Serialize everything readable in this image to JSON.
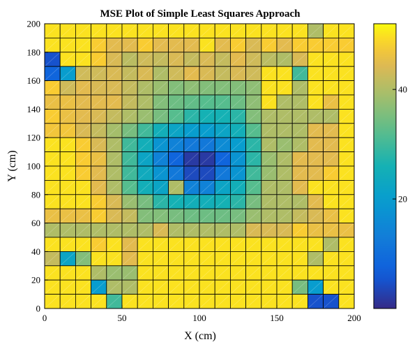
{
  "chart_data": {
    "type": "heatmap",
    "title": "MSE Plot of Simple Least Squares Approach",
    "xlabel": "X (cm)",
    "ylabel": "Y (cm)",
    "xlim": [
      0,
      200
    ],
    "ylim": [
      0,
      200
    ],
    "xticks": [
      "0",
      "50",
      "100",
      "150",
      "200"
    ],
    "yticks": [
      "0",
      "20",
      "40",
      "60",
      "80",
      "100",
      "120",
      "140",
      "160",
      "180",
      "200"
    ],
    "cell_size": 10,
    "colormap": "parula",
    "colorbar": {
      "range": [
        0,
        52
      ],
      "ticks": [
        "20",
        "40"
      ]
    },
    "grid": true,
    "row_order": "top row first (y = 190 to 200) down to bottom row (y = 0 to 10); each row lists x = 0 to 200 in steps of 10",
    "z": [
      [
        50,
        50,
        50,
        50,
        50,
        50,
        50,
        50,
        50,
        50,
        50,
        50,
        50,
        50,
        50,
        50,
        50,
        40,
        50,
        50
      ],
      [
        50,
        50,
        50,
        48,
        45,
        45,
        48,
        45,
        45,
        45,
        50,
        45,
        48,
        44,
        48,
        45,
        48,
        48,
        48,
        48
      ],
      [
        5,
        50,
        50,
        48,
        44,
        41,
        43,
        42,
        44,
        42,
        44,
        42,
        45,
        43,
        41,
        40,
        44,
        50,
        50,
        50
      ],
      [
        8,
        20,
        43,
        43,
        44,
        42,
        44,
        40,
        43,
        45,
        44,
        42,
        44,
        43,
        50,
        50,
        30,
        50,
        50,
        50
      ],
      [
        48,
        43,
        45,
        44,
        44,
        42,
        40,
        38,
        36,
        37,
        36,
        36,
        36,
        37,
        50,
        50,
        40,
        50,
        50,
        50
      ],
      [
        46,
        46,
        45,
        45,
        45,
        42,
        40,
        36,
        34,
        33,
        32,
        32,
        34,
        37,
        50,
        40,
        40,
        50,
        46,
        50
      ],
      [
        48,
        46,
        45,
        44,
        42,
        40,
        38,
        35,
        32,
        28,
        26,
        26,
        28,
        36,
        40,
        40,
        40,
        40,
        40,
        50
      ],
      [
        47,
        47,
        44,
        42,
        39,
        35,
        30,
        25,
        22,
        20,
        20,
        22,
        25,
        32,
        40,
        40,
        40,
        45,
        45,
        50
      ],
      [
        50,
        50,
        48,
        44,
        40,
        30,
        25,
        18,
        14,
        12,
        12,
        16,
        20,
        28,
        40,
        38,
        40,
        45,
        45,
        50
      ],
      [
        50,
        50,
        48,
        46,
        40,
        30,
        22,
        14,
        8,
        2,
        2,
        8,
        18,
        28,
        38,
        40,
        45,
        45,
        45,
        50
      ],
      [
        50,
        50,
        48,
        45,
        40,
        30,
        24,
        18,
        12,
        4,
        4,
        12,
        18,
        30,
        38,
        40,
        45,
        45,
        48,
        50
      ],
      [
        50,
        50,
        50,
        45,
        40,
        32,
        25,
        22,
        40,
        14,
        14,
        22,
        25,
        32,
        40,
        40,
        45,
        50,
        50,
        50
      ],
      [
        50,
        50,
        50,
        48,
        44,
        38,
        35,
        28,
        26,
        25,
        25,
        26,
        28,
        35,
        40,
        40,
        40,
        45,
        50,
        50
      ],
      [
        46,
        46,
        46,
        48,
        44,
        42,
        36,
        36,
        35,
        34,
        34,
        34,
        35,
        38,
        40,
        40,
        42,
        44,
        46,
        50
      ],
      [
        40,
        40,
        40,
        40,
        40,
        40,
        40,
        44,
        40,
        40,
        40,
        40,
        40,
        44,
        44,
        44,
        48,
        46,
        46,
        46
      ],
      [
        50,
        50,
        50,
        48,
        50,
        45,
        50,
        50,
        50,
        50,
        50,
        50,
        50,
        50,
        50,
        50,
        50,
        50,
        40,
        50
      ],
      [
        42,
        22,
        36,
        50,
        50,
        45,
        50,
        50,
        50,
        50,
        50,
        50,
        50,
        50,
        50,
        50,
        50,
        40,
        50,
        50
      ],
      [
        50,
        50,
        50,
        40,
        38,
        38,
        50,
        50,
        50,
        50,
        50,
        50,
        50,
        50,
        50,
        50,
        50,
        50,
        50,
        50
      ],
      [
        50,
        50,
        50,
        20,
        40,
        40,
        50,
        50,
        50,
        50,
        50,
        50,
        50,
        50,
        50,
        50,
        35,
        20,
        50,
        50
      ],
      [
        50,
        50,
        50,
        50,
        30,
        50,
        50,
        50,
        50,
        50,
        50,
        50,
        50,
        50,
        50,
        50,
        50,
        5,
        5,
        50
      ]
    ]
  },
  "colors": {
    "grid_line": "#000000",
    "background": "#ffffff"
  }
}
